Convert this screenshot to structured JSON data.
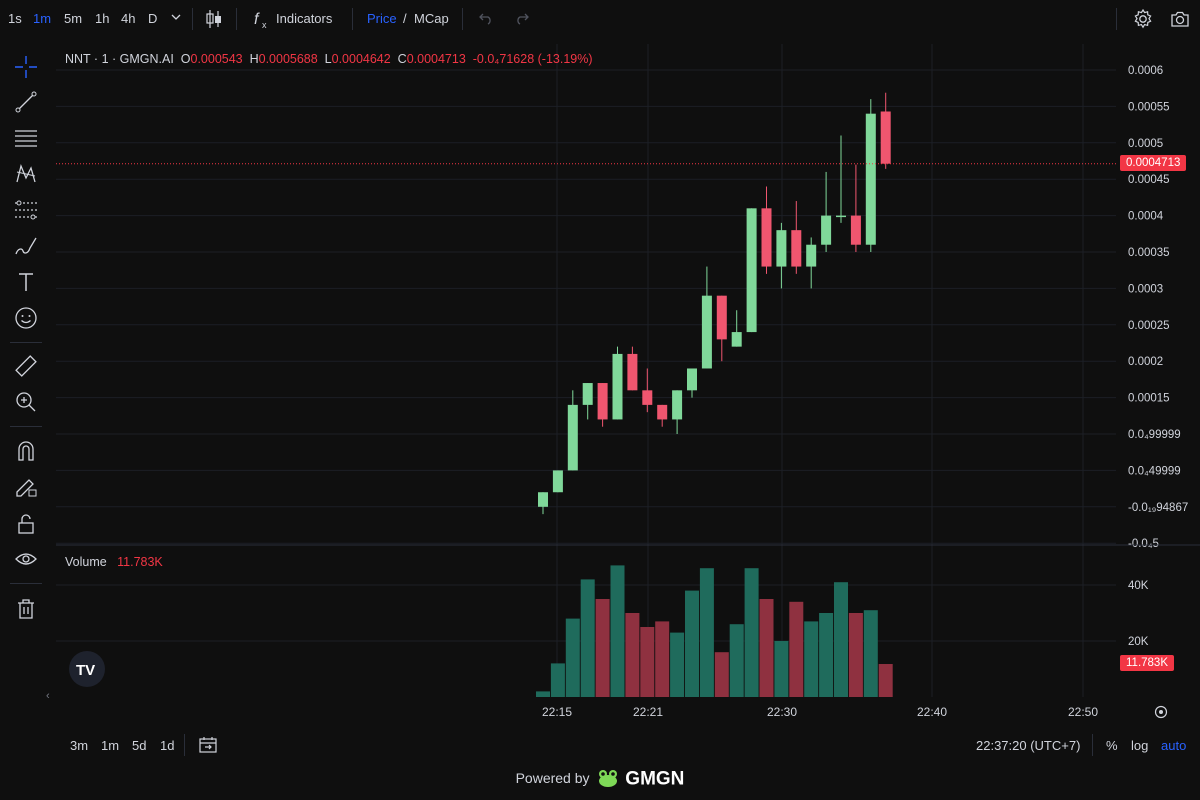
{
  "toolbar": {
    "timeframes": [
      "1s",
      "1m",
      "5m",
      "1h",
      "4h",
      "D"
    ],
    "active_timeframe": "1m",
    "indicators_label": "Indicators",
    "price_label": "Price",
    "slash": "/",
    "mcap_label": "MCap"
  },
  "legend": {
    "symbol": "NNT · 1 · GMGN.AI",
    "o_label": "O",
    "o_value": "0.000543",
    "h_label": "H",
    "h_value": "0.0005688",
    "l_label": "L",
    "l_value": "0.0004642",
    "c_label": "C",
    "c_value": "0.0004713",
    "change": "-0.0₄71628 (-13.19%)"
  },
  "volume_legend": {
    "label": "Volume",
    "value": "11.783K"
  },
  "price_tag": "0.0004713",
  "volume_tag": "11.783K",
  "bottom": {
    "ranges": [
      "3m",
      "1m",
      "5d",
      "1d"
    ],
    "clock": "22:37:20 (UTC+7)",
    "percent": "%",
    "log": "log",
    "auto": "auto"
  },
  "powered_by": "Powered by",
  "brand": "GMGN",
  "colors": {
    "up": "#80d89a",
    "down": "#f0566f",
    "vol_up": "#1f6b5c",
    "vol_down": "#8f3140",
    "accent": "#2962ff"
  },
  "chart_data": {
    "type": "candlestick",
    "y_ticks": [
      "0.0006",
      "0.00055",
      "0.0005",
      "0.00045",
      "0.0004",
      "0.00035",
      "0.0003",
      "0.00025",
      "0.0002",
      "0.00015",
      "0.0₄99999",
      "0.0₄49999",
      "-0.0₁₉94867",
      "-0.0₄5"
    ],
    "x_ticks": [
      "22:15",
      "22:21",
      "22:30",
      "22:40",
      "22:50"
    ],
    "vol_ticks": [
      "40K",
      "20K"
    ],
    "ylim": [
      -5e-05,
      0.0006
    ],
    "candles": [
      {
        "o": 0.0,
        "h": 2e-05,
        "l": -1e-05,
        "c": 2e-05
      },
      {
        "o": 2e-05,
        "h": 5e-05,
        "l": 2e-05,
        "c": 5e-05
      },
      {
        "o": 5e-05,
        "h": 0.00016,
        "l": 5e-05,
        "c": 0.00014
      },
      {
        "o": 0.00014,
        "h": 0.00017,
        "l": 0.00012,
        "c": 0.00017
      },
      {
        "o": 0.00017,
        "h": 0.00017,
        "l": 0.00011,
        "c": 0.00012
      },
      {
        "o": 0.00012,
        "h": 0.00022,
        "l": 0.00012,
        "c": 0.00021
      },
      {
        "o": 0.00021,
        "h": 0.00022,
        "l": 0.00016,
        "c": 0.00016
      },
      {
        "o": 0.00016,
        "h": 0.00019,
        "l": 0.00013,
        "c": 0.00014
      },
      {
        "o": 0.00014,
        "h": 0.00014,
        "l": 0.00011,
        "c": 0.00012
      },
      {
        "o": 0.00012,
        "h": 0.00016,
        "l": 0.0001,
        "c": 0.00016
      },
      {
        "o": 0.00016,
        "h": 0.00019,
        "l": 0.00015,
        "c": 0.00019
      },
      {
        "o": 0.00019,
        "h": 0.00033,
        "l": 0.00019,
        "c": 0.00029
      },
      {
        "o": 0.00029,
        "h": 0.00029,
        "l": 0.0002,
        "c": 0.00023
      },
      {
        "o": 0.00022,
        "h": 0.00027,
        "l": 0.00022,
        "c": 0.00024
      },
      {
        "o": 0.00024,
        "h": 0.00041,
        "l": 0.00024,
        "c": 0.00041
      },
      {
        "o": 0.00041,
        "h": 0.00044,
        "l": 0.00032,
        "c": 0.00033
      },
      {
        "o": 0.00033,
        "h": 0.00039,
        "l": 0.0003,
        "c": 0.00038
      },
      {
        "o": 0.00038,
        "h": 0.00042,
        "l": 0.00032,
        "c": 0.00033
      },
      {
        "o": 0.00033,
        "h": 0.00037,
        "l": 0.0003,
        "c": 0.00036
      },
      {
        "o": 0.00036,
        "h": 0.00046,
        "l": 0.00035,
        "c": 0.0004
      },
      {
        "o": 0.0004,
        "h": 0.00051,
        "l": 0.00039,
        "c": 0.0004
      },
      {
        "o": 0.0004,
        "h": 0.00047,
        "l": 0.00035,
        "c": 0.00036
      },
      {
        "o": 0.00036,
        "h": 0.00056,
        "l": 0.00035,
        "c": 0.00054
      },
      {
        "o": 0.000543,
        "h": 0.0005688,
        "l": 0.0004642,
        "c": 0.0004713
      }
    ],
    "volumes": [
      2000,
      12000,
      28000,
      42000,
      35000,
      47000,
      30000,
      25000,
      27000,
      23000,
      38000,
      46000,
      16000,
      26000,
      46000,
      35000,
      20000,
      34000,
      27000,
      30000,
      41000,
      30000,
      31000,
      11783
    ]
  }
}
